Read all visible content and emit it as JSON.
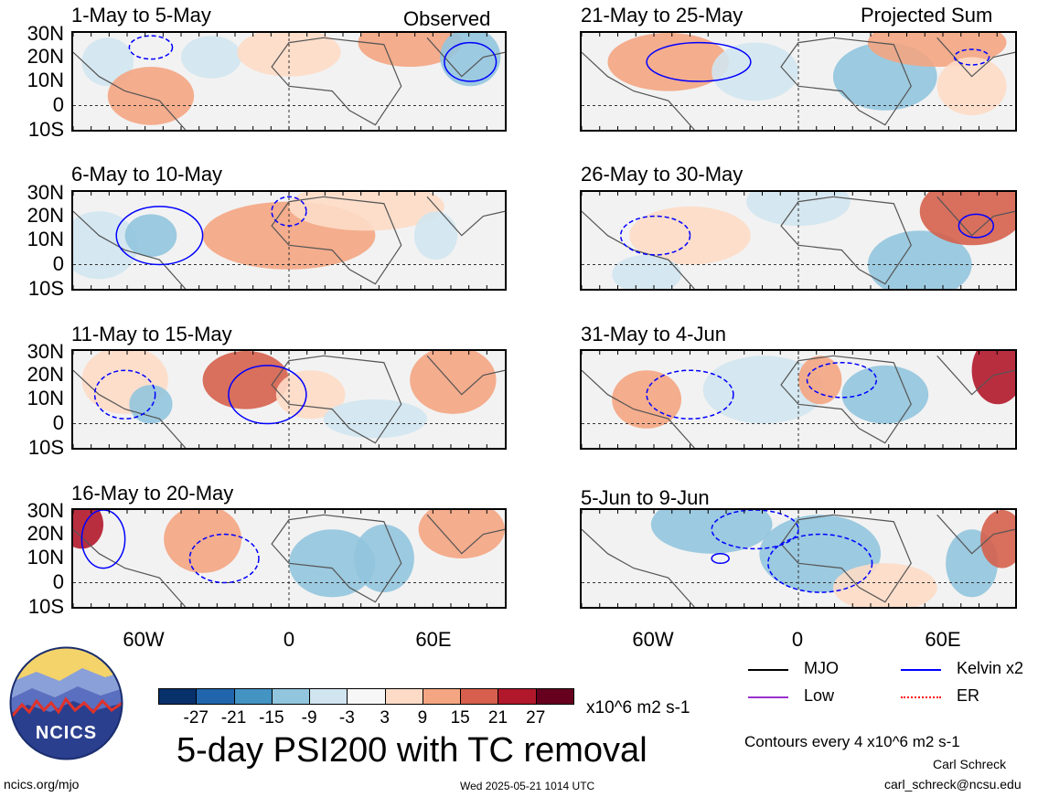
{
  "status": {
    "observed": "Observed",
    "projected": "Projected Sum"
  },
  "panels": [
    {
      "title": "1-May to 5-May",
      "column": "left"
    },
    {
      "title": "6-May to 10-May",
      "column": "left"
    },
    {
      "title": "11-May to 15-May",
      "column": "left"
    },
    {
      "title": "16-May to 20-May",
      "column": "left"
    },
    {
      "title": "21-May to 25-May",
      "column": "right"
    },
    {
      "title": "26-May to 30-May",
      "column": "right"
    },
    {
      "title": "31-May to 4-Jun",
      "column": "right"
    },
    {
      "title": "5-Jun to 9-Jun",
      "column": "right"
    }
  ],
  "axes": {
    "lat_labels": [
      "30N",
      "20N",
      "10N",
      "0",
      "10S"
    ],
    "lon_labels": [
      "60W",
      "0",
      "60E"
    ]
  },
  "colorbar": {
    "colors": [
      "#08306b",
      "#2166ac",
      "#4393c3",
      "#92c5de",
      "#d1e5f0",
      "#f7f7f7",
      "#fddbc7",
      "#f4a582",
      "#d6604d",
      "#b2182b",
      "#67001f"
    ],
    "labels": [
      "-27",
      "-21",
      "-15",
      "-9",
      "-3",
      "3",
      "9",
      "15",
      "21",
      "27"
    ],
    "units": "x10^6 m2 s-1"
  },
  "legend": {
    "mjo": {
      "label": "MJO",
      "color": "#000000"
    },
    "kelvin": {
      "label": "Kelvin x2",
      "color": "#0000ff"
    },
    "low": {
      "label": "Low",
      "color": "#9932cc"
    },
    "er": {
      "label": "ER",
      "color": "#ff0000"
    },
    "contours": "Contours every 4 x10^6 m2 s-1"
  },
  "main_title": "5-day PSI200 with TC removal",
  "logo": {
    "text": "NCICS"
  },
  "footer": {
    "left": "ncics.org/mjo",
    "timestamp": "Wed 2025-05-21 1014 UTC",
    "author": "Carl Schreck",
    "email": "carl_schreck@ncsu.edu"
  }
}
